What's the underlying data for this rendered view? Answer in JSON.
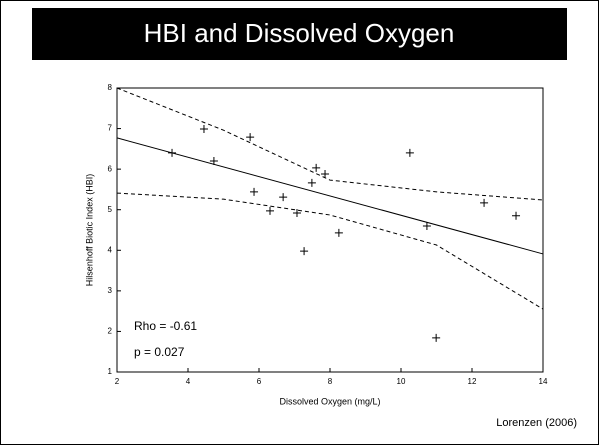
{
  "chart_data": {
    "type": "scatter",
    "title": "HBI and Dissolved Oxygen",
    "xlabel": "Dissolved Oxygen (mg/L)",
    "ylabel": "Hilsenhoff Biotic Index (HBI)",
    "annotations": [
      "Rho = -0.61",
      "p = 0.027",
      "Lorenzen (2006)"
    ],
    "xlim": [
      2,
      14
    ],
    "ylim": [
      1,
      8
    ],
    "xticks": [
      2,
      4,
      6,
      8,
      10,
      12,
      14
    ],
    "yticks": [
      1,
      2,
      3,
      4,
      5,
      6,
      7,
      8
    ],
    "color": "#000000",
    "points": {
      "x": [
        3.55,
        4.45,
        4.73,
        5.75,
        5.86,
        6.31,
        6.68,
        7.07,
        7.27,
        7.49,
        7.61,
        7.86,
        8.25,
        10.25,
        10.73,
        10.99,
        12.34,
        13.24
      ],
      "y": [
        6.4,
        6.99,
        6.2,
        6.79,
        5.44,
        4.97,
        5.31,
        4.92,
        3.98,
        5.66,
        6.03,
        5.88,
        4.43,
        6.4,
        4.6,
        1.84,
        5.17,
        4.85
      ]
    },
    "lines": [
      {
        "style": "solid",
        "x": [
          2,
          14
        ],
        "y": [
          6.77,
          3.91
        ]
      },
      {
        "style": "dashed",
        "x": [
          2,
          5,
          8,
          11,
          14
        ],
        "y": [
          8.0,
          6.96,
          5.73,
          5.44,
          5.24
        ]
      },
      {
        "style": "dashed",
        "x": [
          2,
          5,
          8,
          11,
          14
        ],
        "y": [
          5.41,
          5.26,
          4.87,
          4.13,
          2.55
        ]
      }
    ]
  }
}
